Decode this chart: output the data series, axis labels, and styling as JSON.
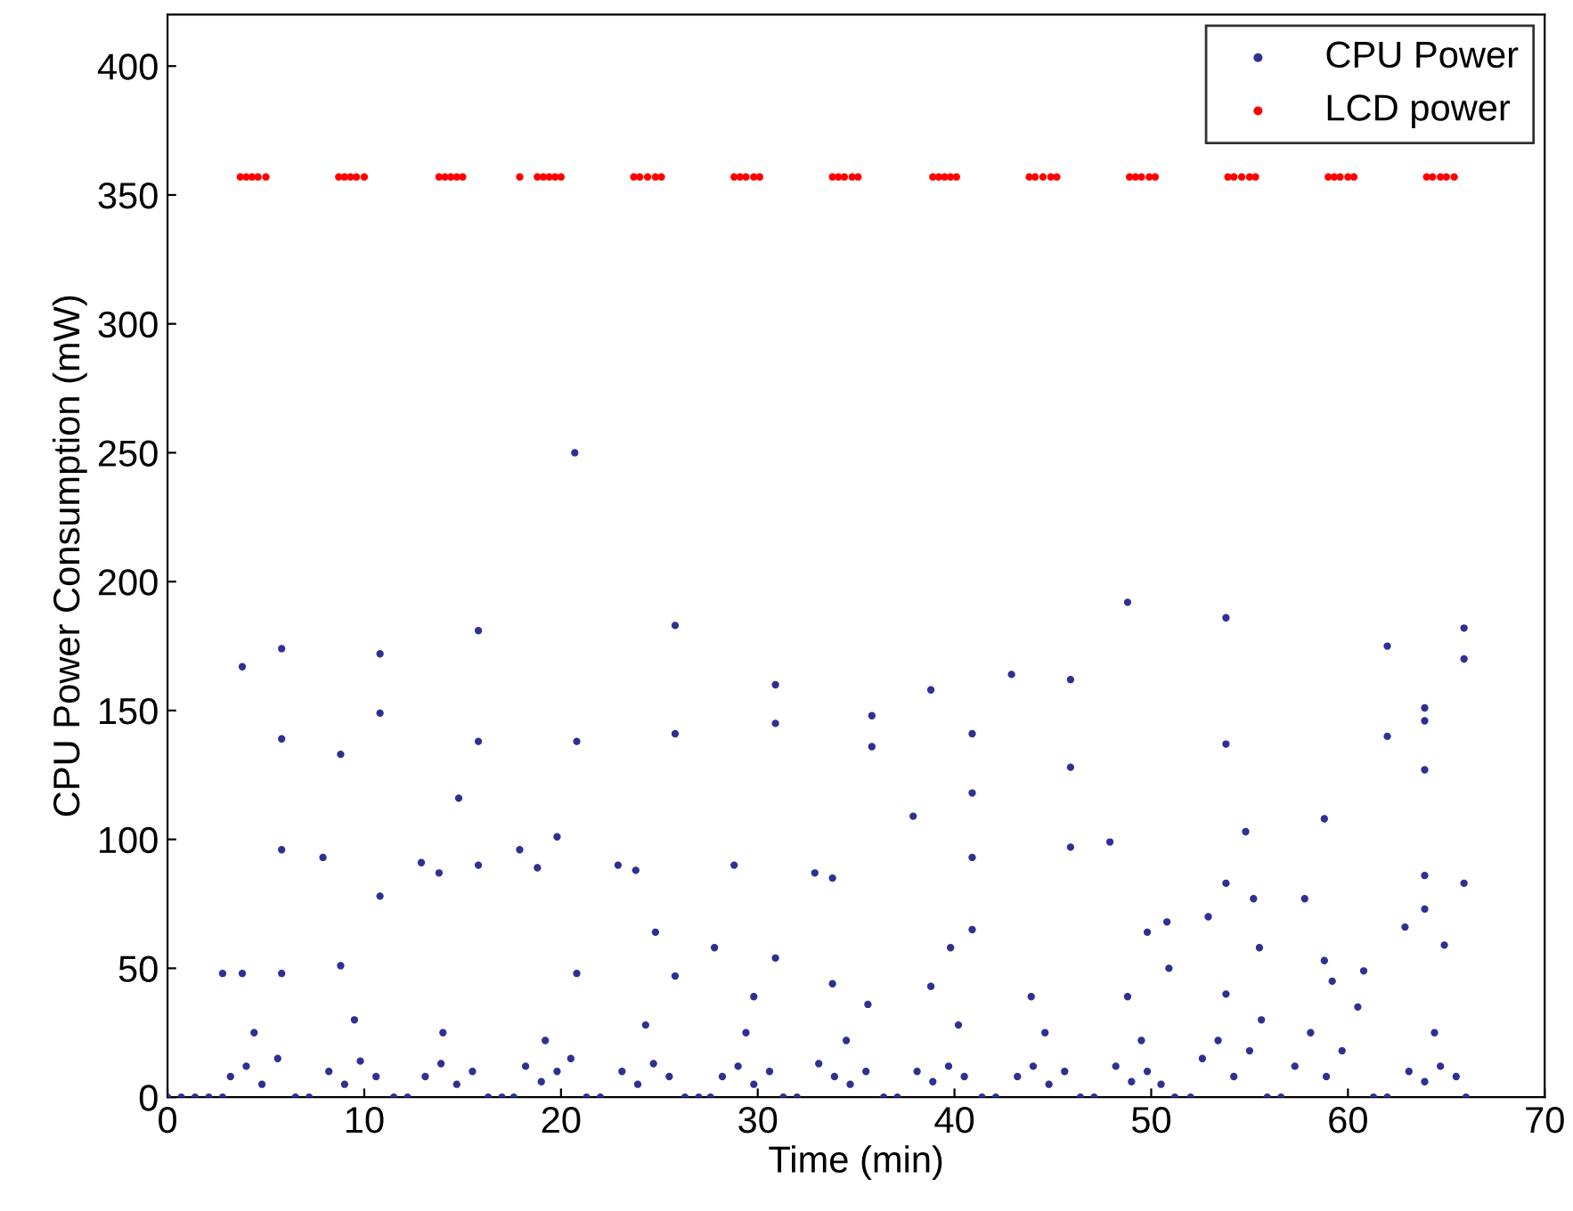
{
  "chart_data": {
    "type": "scatter",
    "xlabel": "Time (min)",
    "ylabel": "CPU Power Consumption (mW)",
    "xlim": [
      0,
      70
    ],
    "ylim": [
      0,
      420
    ],
    "xticks": [
      0,
      10,
      20,
      30,
      40,
      50,
      60,
      70
    ],
    "yticks": [
      0,
      50,
      100,
      150,
      200,
      250,
      300,
      350,
      400
    ],
    "grid": false,
    "legend": "top right",
    "marker": "circle",
    "series": [
      {
        "name": "CPU Power",
        "color": "#2e3192",
        "x": [
          0,
          0.7,
          1.4,
          2.1,
          2.8,
          6.5,
          7.2,
          11.5,
          12.2,
          16.3,
          17.0,
          17.6,
          21.3,
          22.0,
          26.3,
          27.0,
          27.6,
          31.3,
          32.0,
          36.4,
          37.1,
          41.4,
          42.1,
          46.4,
          47.1,
          51.2,
          52.0,
          55.9,
          56.6,
          61.3,
          62.0,
          66.0,
          3.2,
          4.0,
          4.8,
          5.6,
          4.4,
          8.2,
          9.0,
          9.8,
          10.6,
          9.5,
          13.1,
          13.9,
          14.7,
          15.5,
          14.0,
          18.2,
          19.0,
          19.8,
          20.5,
          19.2,
          23.1,
          23.9,
          24.7,
          25.5,
          24.3,
          28.2,
          29.0,
          29.8,
          30.6,
          29.4,
          33.1,
          33.9,
          34.7,
          35.5,
          34.5,
          38.1,
          38.9,
          39.7,
          40.5,
          40.2,
          43.2,
          44.0,
          44.8,
          45.6,
          44.6,
          48.2,
          49.0,
          49.8,
          50.5,
          49.5,
          52.6,
          53.4,
          54.2,
          55.0,
          55.6,
          53.8,
          57.3,
          58.1,
          58.9,
          59.7,
          60.5,
          59.2,
          63.1,
          63.9,
          64.7,
          65.5,
          64.4,
          3.8,
          2.8,
          3.8,
          5.8,
          5.8,
          5.8,
          5.8,
          7.9,
          8.8,
          8.8,
          10.8,
          10.8,
          10.8,
          12.9,
          13.8,
          14.8,
          15.8,
          15.8,
          15.8,
          17.9,
          18.8,
          19.8,
          20.7,
          20.8,
          20.8,
          22.9,
          23.8,
          24.8,
          25.8,
          25.8,
          25.8,
          27.8,
          28.8,
          29.8,
          30.9,
          30.9,
          30.9,
          32.9,
          33.8,
          33.8,
          35.8,
          35.8,
          35.6,
          37.9,
          38.8,
          38.8,
          39.8,
          40.9,
          40.9,
          40.9,
          40.9,
          42.9,
          43.9,
          45.9,
          45.9,
          45.9,
          47.9,
          48.8,
          48.8,
          49.8,
          50.8,
          50.9,
          52.9,
          53.8,
          53.8,
          53.8,
          54.8,
          55.2,
          55.5,
          57.8,
          58.8,
          58.8,
          60.8,
          62.0,
          62.0,
          62.9,
          63.9,
          63.9,
          63.9,
          63.9,
          63.9,
          64.9,
          65.9,
          65.9,
          65.9
        ],
        "values": [
          0,
          0,
          0,
          0,
          0,
          0,
          0,
          0,
          0,
          0,
          0,
          0,
          0,
          0,
          0,
          0,
          0,
          0,
          0,
          0,
          0,
          0,
          0,
          0,
          0,
          0,
          0,
          0,
          0,
          0,
          0,
          0,
          8,
          12,
          5,
          15,
          25,
          10,
          5,
          14,
          8,
          30,
          8,
          13,
          5,
          10,
          25,
          12,
          6,
          10,
          15,
          22,
          10,
          5,
          13,
          8,
          28,
          8,
          12,
          5,
          10,
          25,
          13,
          8,
          5,
          10,
          22,
          10,
          6,
          12,
          8,
          28,
          8,
          12,
          5,
          10,
          25,
          12,
          6,
          10,
          5,
          22,
          15,
          22,
          8,
          18,
          30,
          40,
          12,
          25,
          8,
          18,
          35,
          45,
          10,
          6,
          12,
          8,
          25,
          167,
          48,
          48,
          174,
          139,
          96,
          48,
          93,
          133,
          51,
          172,
          149,
          78,
          91,
          87,
          116,
          181,
          138,
          90,
          96,
          89,
          101,
          250,
          138,
          48,
          90,
          88,
          64,
          183,
          141,
          47,
          58,
          90,
          39,
          160,
          145,
          54,
          87,
          85,
          44,
          148,
          136,
          36,
          109,
          158,
          43,
          58,
          141,
          118,
          93,
          65,
          164,
          39,
          162,
          128,
          97,
          99,
          192,
          39,
          64,
          68,
          50,
          70,
          186,
          137,
          83,
          103,
          77,
          58,
          77,
          108,
          53,
          49,
          175,
          140,
          66,
          151,
          146,
          127,
          86,
          73,
          59,
          182,
          170,
          83
        ]
      },
      {
        "name": "LCD power",
        "color": "#ff0000",
        "x": [
          3.7,
          4.0,
          4.3,
          4.6,
          5.0,
          8.7,
          9.0,
          9.3,
          9.6,
          10.0,
          13.8,
          14.1,
          14.4,
          14.7,
          15.0,
          17.9,
          18.8,
          19.1,
          19.4,
          19.7,
          20.0,
          23.7,
          24.0,
          24.4,
          24.8,
          25.1,
          28.8,
          29.1,
          29.4,
          29.8,
          30.1,
          33.8,
          34.1,
          34.4,
          34.8,
          35.1,
          38.9,
          39.2,
          39.5,
          39.8,
          40.1,
          43.8,
          44.1,
          44.5,
          44.9,
          45.2,
          48.9,
          49.2,
          49.5,
          49.9,
          50.2,
          53.9,
          54.2,
          54.6,
          55.0,
          55.3,
          59.0,
          59.3,
          59.6,
          60.0,
          60.3,
          64.0,
          64.3,
          64.7,
          65.0,
          65.4
        ],
        "values": [
          357,
          357,
          357,
          357,
          357,
          357,
          357,
          357,
          357,
          357,
          357,
          357,
          357,
          357,
          357,
          357,
          357,
          357,
          357,
          357,
          357,
          357,
          357,
          357,
          357,
          357,
          357,
          357,
          357,
          357,
          357,
          357,
          357,
          357,
          357,
          357,
          357,
          357,
          357,
          357,
          357,
          357,
          357,
          357,
          357,
          357,
          357,
          357,
          357,
          357,
          357,
          357,
          357,
          357,
          357,
          357,
          357,
          357,
          357,
          357,
          357,
          357,
          357,
          357,
          357,
          357
        ]
      }
    ]
  }
}
